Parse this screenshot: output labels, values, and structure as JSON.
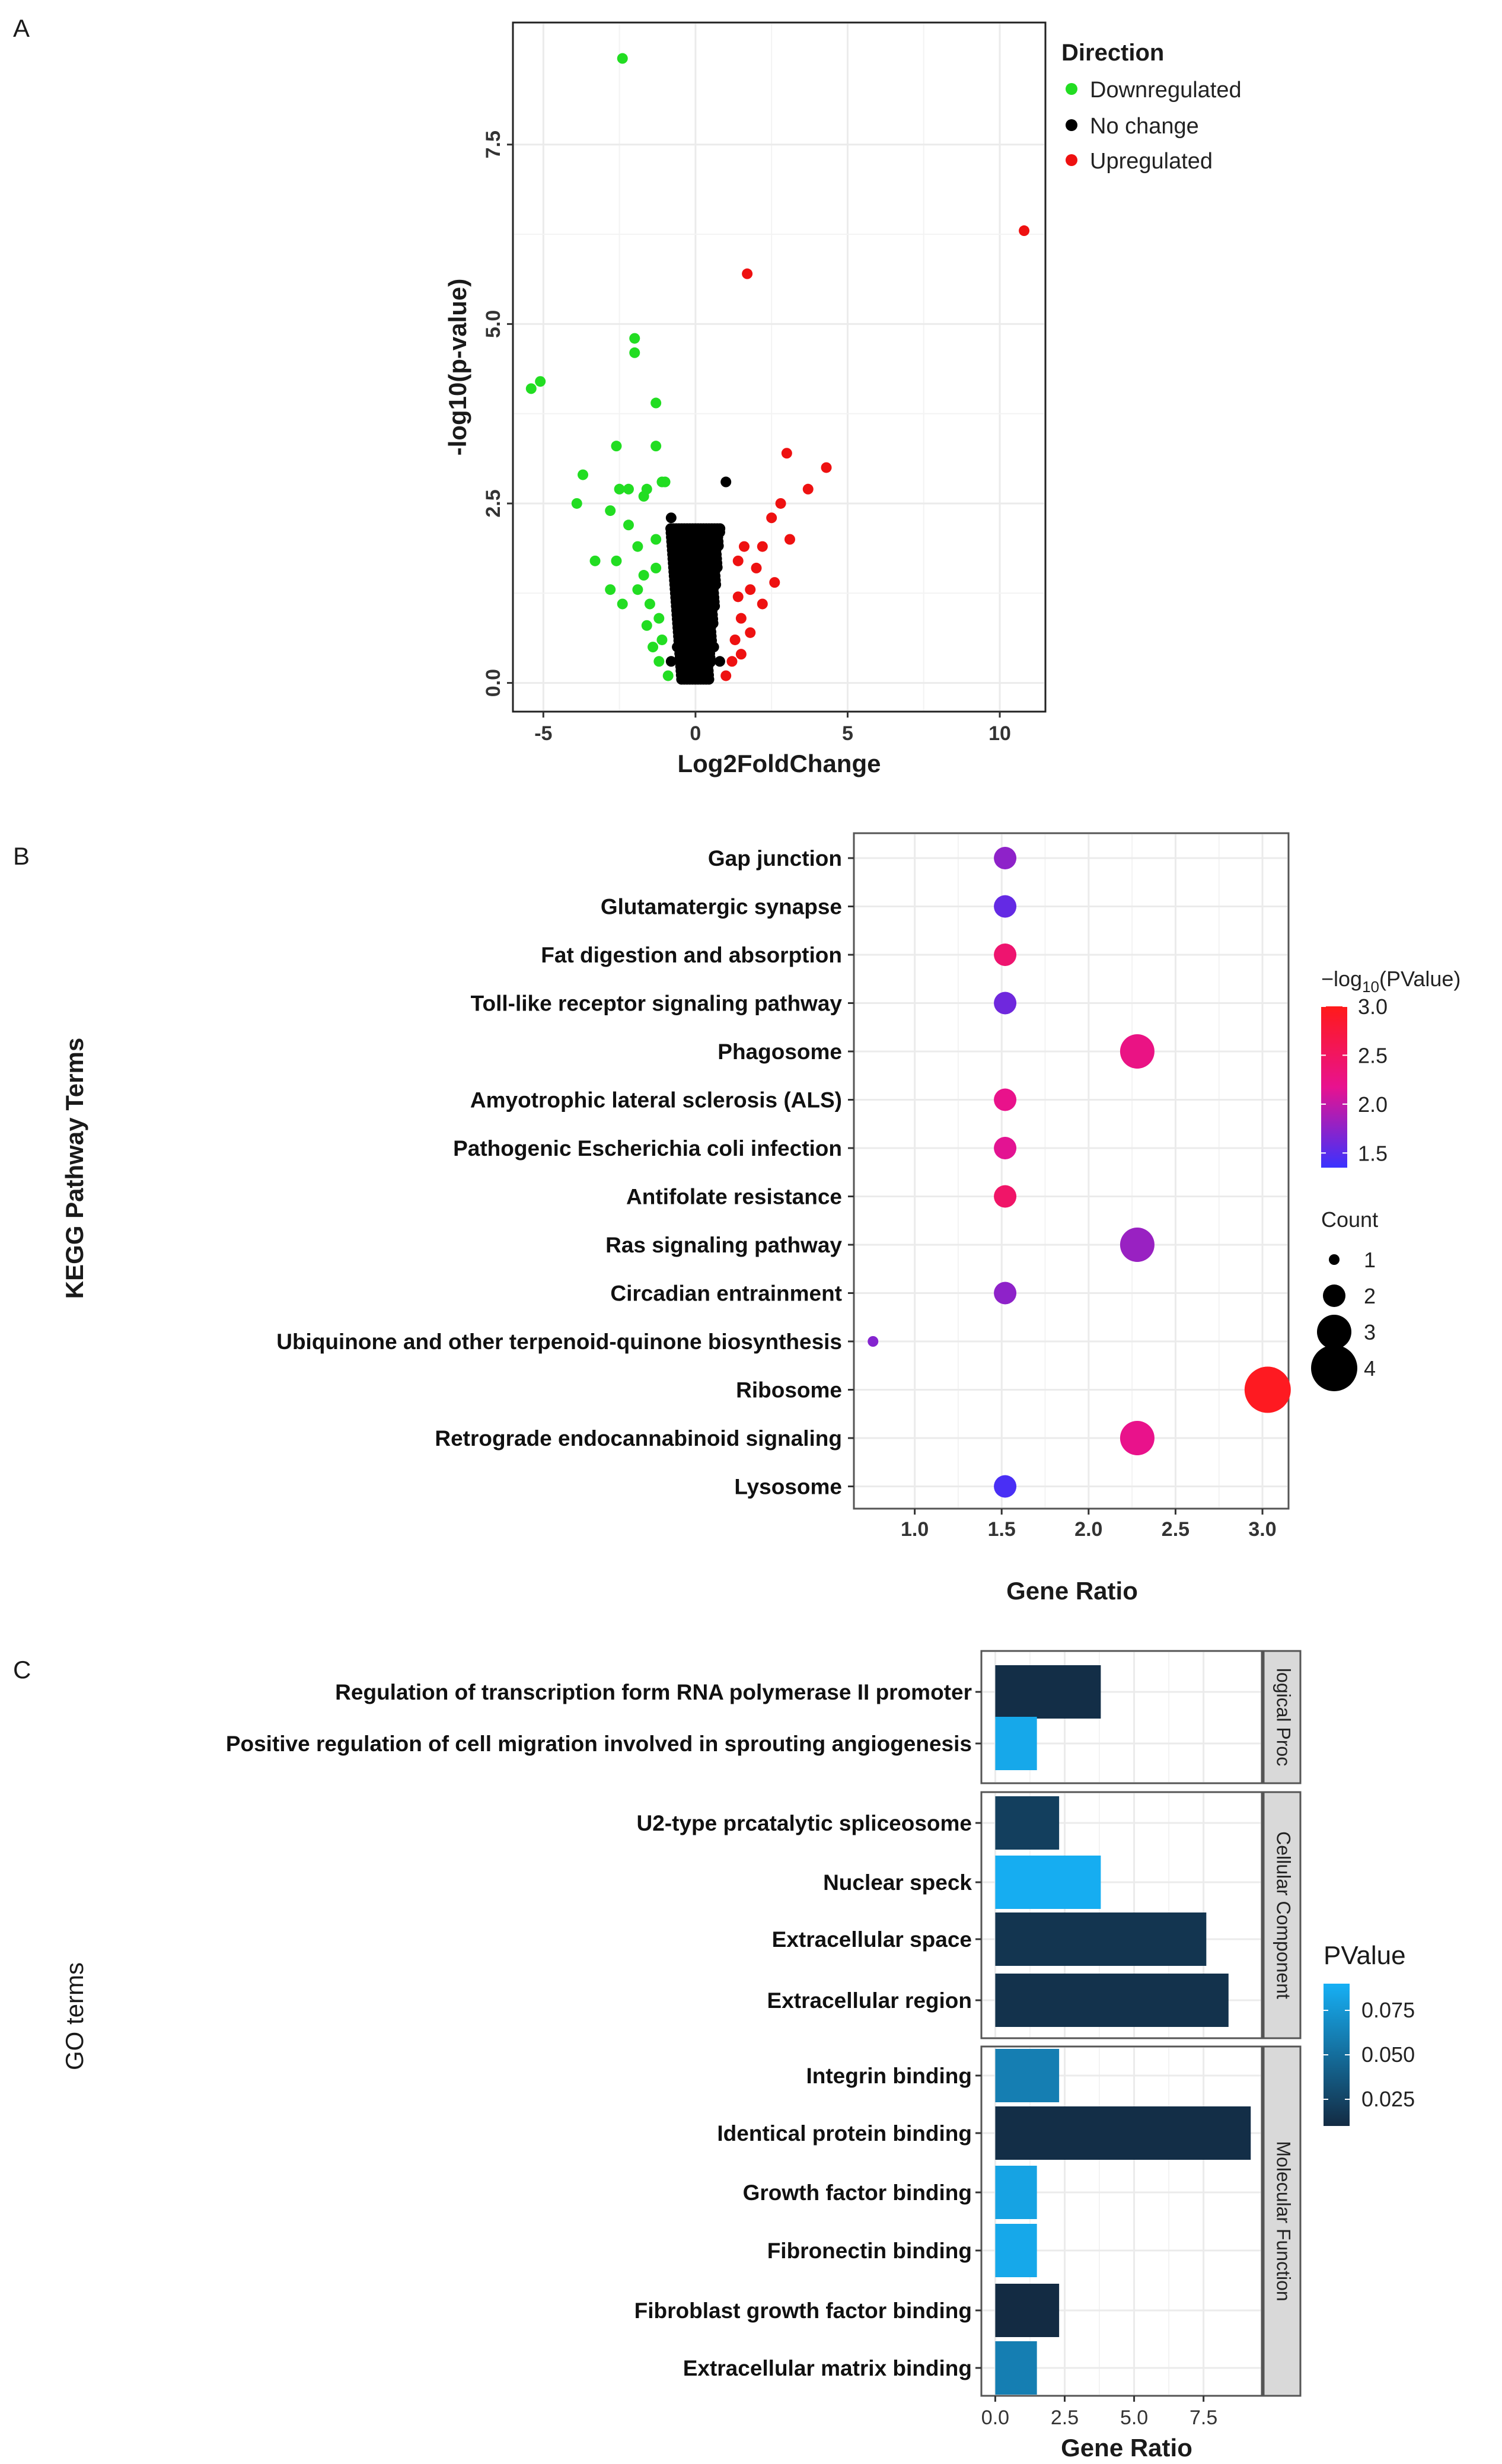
{
  "colors": {
    "down": "#22dd22",
    "none": "#000000",
    "up": "#ee1111",
    "grid": "#ebebeb",
    "panel_border": "#333333",
    "strip_fill": "#d9d9d9",
    "pv_low": "#ff1a1a",
    "pv_mid": "#e8128f",
    "pv_high": "#3a32ff",
    "go_dark": "#132b43",
    "go_light": "#16b0f5"
  },
  "panels": {
    "a": {
      "letter": "A"
    },
    "b": {
      "letter": "B"
    },
    "c": {
      "letter": "C"
    }
  },
  "chart_data": [
    {
      "type": "scatter",
      "panel": "A",
      "title": "",
      "xlabel": "Log2FoldChange",
      "ylabel": "-log10(p-value)",
      "xlim": [
        -6,
        11.5
      ],
      "ylim": [
        -0.4,
        9.2
      ],
      "xticks": [
        -5,
        0,
        5,
        10
      ],
      "yticks": [
        0.0,
        2.5,
        5.0,
        7.5
      ],
      "ytick_labels": [
        "0.0",
        "2.5",
        "5.0",
        "7.5"
      ],
      "legend": {
        "title": "Direction",
        "position": "right",
        "entries": [
          {
            "label": "Downregulated",
            "color_key": "down"
          },
          {
            "label": "No change",
            "color_key": "none"
          },
          {
            "label": "Upregulated",
            "color_key": "up"
          }
        ]
      },
      "series": [
        {
          "name": "Downregulated",
          "points": [
            [
              -2.4,
              8.7
            ],
            [
              -5.1,
              4.2
            ],
            [
              -5.4,
              4.1
            ],
            [
              -2.0,
              4.8
            ],
            [
              -2.0,
              4.6
            ],
            [
              -1.3,
              3.9
            ],
            [
              -2.6,
              3.3
            ],
            [
              -1.3,
              3.3
            ],
            [
              -3.7,
              2.9
            ],
            [
              -3.9,
              2.5
            ],
            [
              -2.2,
              2.7
            ],
            [
              -1.7,
              2.6
            ],
            [
              -2.5,
              2.7
            ],
            [
              -1.6,
              2.7
            ],
            [
              -1.1,
              2.8
            ],
            [
              -1.0,
              2.8
            ],
            [
              -2.8,
              2.4
            ],
            [
              -2.2,
              2.2
            ],
            [
              -1.3,
              2.0
            ],
            [
              -3.3,
              1.7
            ],
            [
              -2.6,
              1.7
            ],
            [
              -1.9,
              1.9
            ],
            [
              -1.7,
              1.5
            ],
            [
              -1.3,
              1.6
            ],
            [
              -2.8,
              1.3
            ],
            [
              -2.4,
              1.1
            ],
            [
              -1.9,
              1.3
            ],
            [
              -1.5,
              1.1
            ],
            [
              -1.6,
              0.8
            ],
            [
              -1.2,
              0.9
            ],
            [
              -1.4,
              0.5
            ],
            [
              -1.1,
              0.6
            ],
            [
              -1.2,
              0.3
            ],
            [
              -0.9,
              0.1
            ]
          ]
        },
        {
          "name": "No change",
          "points": [
            [
              -0.8,
              2.3
            ],
            [
              -0.7,
              2.0
            ],
            [
              -0.6,
              1.7
            ],
            [
              -0.5,
              1.4
            ],
            [
              -0.4,
              1.1
            ],
            [
              -0.3,
              0.8
            ],
            [
              -0.2,
              0.5
            ],
            [
              -0.1,
              0.25
            ],
            [
              0.0,
              0.08
            ],
            [
              0.1,
              0.25
            ],
            [
              0.2,
              0.5
            ],
            [
              0.3,
              0.8
            ],
            [
              0.4,
              1.1
            ],
            [
              0.5,
              1.4
            ],
            [
              0.6,
              1.7
            ],
            [
              0.7,
              2.0
            ],
            [
              0.8,
              2.1
            ],
            [
              1.0,
              2.8
            ],
            [
              -0.8,
              0.3
            ],
            [
              0.8,
              0.3
            ],
            [
              -0.6,
              0.5
            ],
            [
              0.6,
              0.5
            ],
            [
              -0.4,
              0.2
            ],
            [
              0.4,
              0.2
            ]
          ]
        },
        {
          "name": "Upregulated",
          "points": [
            [
              10.8,
              6.3
            ],
            [
              1.7,
              5.7
            ],
            [
              3.0,
              3.2
            ],
            [
              4.3,
              3.0
            ],
            [
              3.7,
              2.7
            ],
            [
              2.8,
              2.5
            ],
            [
              2.5,
              2.3
            ],
            [
              3.1,
              2.0
            ],
            [
              2.2,
              1.9
            ],
            [
              1.6,
              1.9
            ],
            [
              2.0,
              1.6
            ],
            [
              1.4,
              1.7
            ],
            [
              2.6,
              1.4
            ],
            [
              1.8,
              1.3
            ],
            [
              1.4,
              1.2
            ],
            [
              2.2,
              1.1
            ],
            [
              1.5,
              0.9
            ],
            [
              1.8,
              0.7
            ],
            [
              1.3,
              0.6
            ],
            [
              1.5,
              0.4
            ],
            [
              1.2,
              0.3
            ],
            [
              1.0,
              0.1
            ]
          ]
        }
      ]
    },
    {
      "type": "scatter",
      "panel": "B",
      "title": "",
      "xlabel": "Gene Ratio",
      "ylabel": "KEGG Pathway Terms",
      "xlim": [
        0.65,
        3.15
      ],
      "xticks": [
        1.0,
        1.5,
        2.0,
        2.5,
        3.0
      ],
      "xtick_labels": [
        "1.0",
        "1.5",
        "2.0",
        "2.5",
        "3.0"
      ],
      "color_legend": {
        "title_prefix": "−log",
        "title_sub": "10",
        "title_suffix": "(PValue)",
        "min": 1.35,
        "max": 3.0,
        "ticks": [
          "1.5",
          "2.0",
          "2.5",
          "3.0"
        ],
        "tick_values": [
          1.5,
          2.0,
          2.5,
          3.0
        ]
      },
      "size_legend": {
        "title": "Count",
        "labels": [
          "1",
          "2",
          "3",
          "4"
        ],
        "values": [
          1,
          2,
          3,
          4
        ]
      },
      "terms": [
        {
          "term": "Gap junction",
          "gene_ratio": 1.52,
          "neglog10p": 1.75,
          "count": 2
        },
        {
          "term": "Glutamatergic synapse",
          "gene_ratio": 1.52,
          "neglog10p": 1.55,
          "count": 2
        },
        {
          "term": "Fat digestion and absorption",
          "gene_ratio": 1.52,
          "neglog10p": 2.4,
          "count": 2
        },
        {
          "term": "Toll-like receptor signaling pathway",
          "gene_ratio": 1.52,
          "neglog10p": 1.6,
          "count": 2
        },
        {
          "term": "Phagosome",
          "gene_ratio": 2.28,
          "neglog10p": 2.25,
          "count": 3
        },
        {
          "term": "Amyotrophic lateral sclerosis (ALS)",
          "gene_ratio": 1.52,
          "neglog10p": 2.2,
          "count": 2
        },
        {
          "term": "Pathogenic Escherichia coli infection",
          "gene_ratio": 1.52,
          "neglog10p": 2.15,
          "count": 2
        },
        {
          "term": "Antifolate resistance",
          "gene_ratio": 1.52,
          "neglog10p": 2.45,
          "count": 2
        },
        {
          "term": "Ras signaling pathway",
          "gene_ratio": 2.28,
          "neglog10p": 1.8,
          "count": 3
        },
        {
          "term": "Circadian entrainment",
          "gene_ratio": 1.52,
          "neglog10p": 1.75,
          "count": 2
        },
        {
          "term": "Ubiquinone and other terpenoid-quinone biosynthesis",
          "gene_ratio": 0.76,
          "neglog10p": 1.7,
          "count": 1
        },
        {
          "term": "Ribosome",
          "gene_ratio": 3.03,
          "neglog10p": 2.95,
          "count": 4
        },
        {
          "term": "Retrograde endocannabinoid signaling",
          "gene_ratio": 2.28,
          "neglog10p": 2.2,
          "count": 3
        },
        {
          "term": "Lysosome",
          "gene_ratio": 1.52,
          "neglog10p": 1.42,
          "count": 2
        }
      ]
    },
    {
      "type": "bar",
      "panel": "C",
      "title": "",
      "xlabel": "Gene Ratio",
      "ylabel": "GO terms",
      "xlim": [
        -0.5,
        9.6
      ],
      "xticks": [
        0.0,
        2.5,
        5.0,
        7.5
      ],
      "xtick_labels": [
        "0.0",
        "2.5",
        "5.0",
        "7.5"
      ],
      "color_legend": {
        "title": "PValue",
        "min": 0.01,
        "max": 0.09,
        "ticks": [
          "0.025",
          "0.050",
          "0.075"
        ],
        "tick_values": [
          0.025,
          0.05,
          0.075
        ]
      },
      "facets": [
        {
          "label": "logical Proc",
          "terms": [
            {
              "term": "Regulation of transcription form RNA polymerase II promoter",
              "value": 3.8,
              "pvalue": 0.012
            },
            {
              "term": "Positive regulation of cell migration involved in sprouting angiogenesis",
              "value": 1.5,
              "pvalue": 0.085
            }
          ]
        },
        {
          "label": "Cellular Component",
          "terms": [
            {
              "term": "U2-type prcatalytic spliceosome",
              "value": 2.3,
              "pvalue": 0.022
            },
            {
              "term": "Nuclear speck",
              "value": 3.8,
              "pvalue": 0.088
            },
            {
              "term": "Extracellular space",
              "value": 7.6,
              "pvalue": 0.016
            },
            {
              "term": "Extracellular region",
              "value": 8.4,
              "pvalue": 0.014
            }
          ]
        },
        {
          "label": "Molecular Function",
          "terms": [
            {
              "term": "Integrin binding",
              "value": 2.3,
              "pvalue": 0.06
            },
            {
              "term": "Identical protein binding",
              "value": 9.2,
              "pvalue": 0.012
            },
            {
              "term": "Growth factor binding",
              "value": 1.5,
              "pvalue": 0.082
            },
            {
              "term": "Fibronectin binding",
              "value": 1.5,
              "pvalue": 0.085
            },
            {
              "term": "Fibroblast growth factor binding",
              "value": 2.3,
              "pvalue": 0.01
            },
            {
              "term": "Extracellular matrix binding",
              "value": 1.5,
              "pvalue": 0.06
            }
          ]
        }
      ]
    }
  ]
}
